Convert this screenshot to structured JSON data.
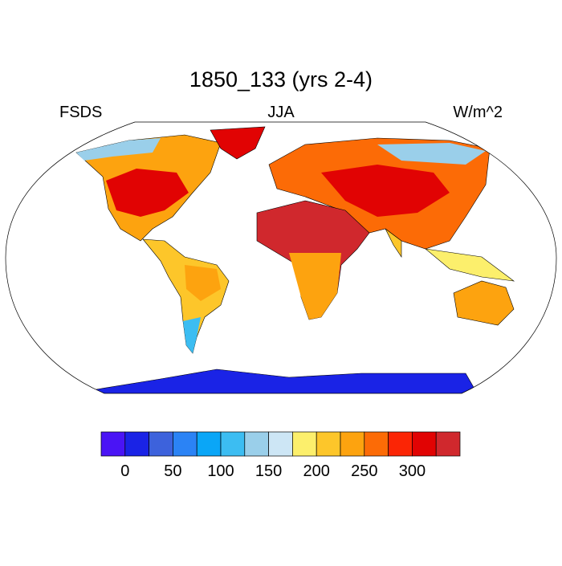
{
  "title": "1850_133 (yrs 2-4)",
  "left_label": "FSDS",
  "center_label": "JJA",
  "right_label": "W/m^2",
  "colorbar": {
    "colors": [
      "#4a14f5",
      "#1a23e6",
      "#3d62dc",
      "#2b83f5",
      "#0aa6f7",
      "#3cbdf2",
      "#9acfea",
      "#cde6f5",
      "#fcef6c",
      "#fdc62a",
      "#fda30f",
      "#fc6b06",
      "#fb2505",
      "#e10303",
      "#d0282d"
    ],
    "levels": [
      0,
      25,
      50,
      75,
      100,
      125,
      150,
      175,
      200,
      225,
      250,
      275,
      300,
      325
    ],
    "ticks": [
      0,
      50,
      100,
      150,
      200,
      250,
      300
    ]
  }
}
